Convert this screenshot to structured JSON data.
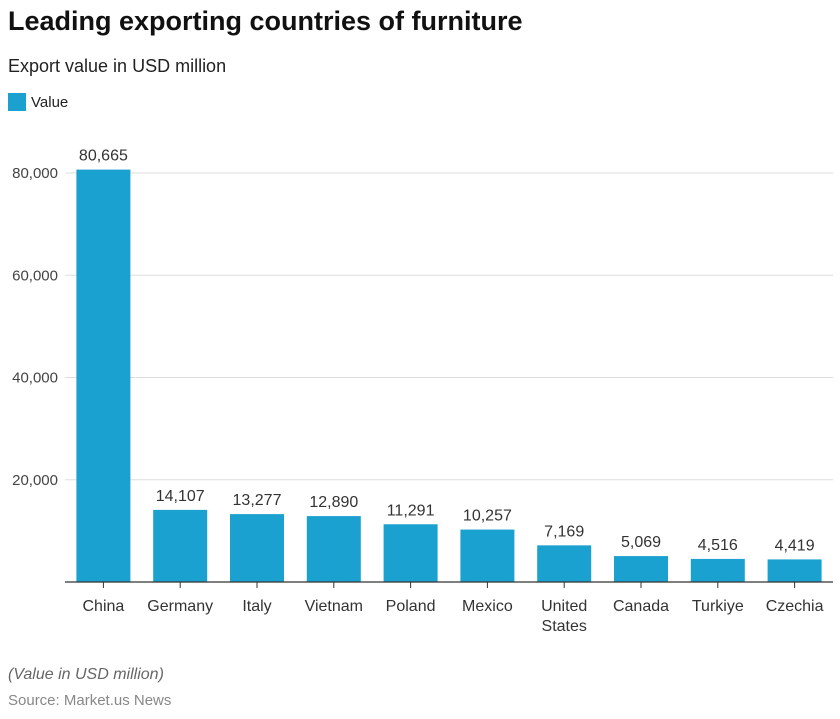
{
  "chart_data": {
    "type": "bar",
    "title": "Leading exporting countries of furniture",
    "subtitle": "Export value in USD million",
    "legend": {
      "label": "Value",
      "placement": "top-left"
    },
    "categories": [
      "China",
      "Germany",
      "Italy",
      "Vietnam",
      "Poland",
      "Mexico",
      "United States",
      "Canada",
      "Turkiye",
      "Czechia"
    ],
    "series": [
      {
        "name": "Value",
        "values": [
          80665,
          14107,
          13277,
          12890,
          11291,
          10257,
          7169,
          5069,
          4516,
          4419
        ]
      }
    ],
    "data_labels": [
      "80,665",
      "14,107",
      "13,277",
      "12,890",
      "11,291",
      "10,257",
      "7,169",
      "5,069",
      "4,516",
      "4,419"
    ],
    "yticks": [
      20000,
      40000,
      60000,
      80000
    ],
    "ytick_labels": [
      "20,000",
      "40,000",
      "60,000",
      "80,000"
    ],
    "ylim": [
      0,
      80000
    ],
    "grid": true,
    "color": "#1aa1cf",
    "note": "(Value in USD million)",
    "source": "Source: Market.us News"
  }
}
